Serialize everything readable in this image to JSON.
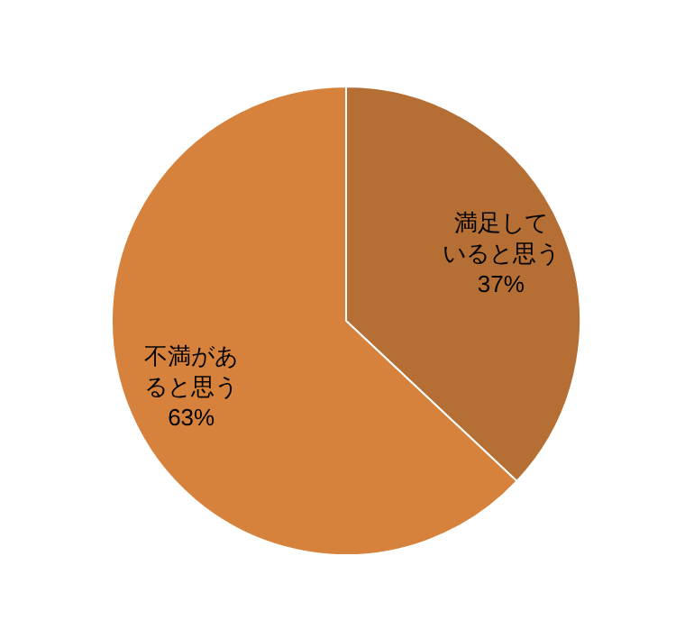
{
  "chart_data": {
    "type": "pie",
    "categories": [
      "満足していると思う",
      "不満があると思う"
    ],
    "values": [
      37,
      63
    ],
    "colors": [
      "#b56f34",
      "#d6823c"
    ],
    "value_labels": [
      "37%",
      "63%"
    ]
  }
}
